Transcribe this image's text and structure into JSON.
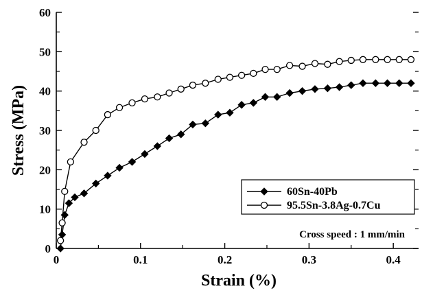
{
  "chart_data": {
    "type": "line",
    "title": "",
    "xlabel": "Strain (%)",
    "ylabel": "Stress (MPa)",
    "xlim": [
      0,
      0.43
    ],
    "ylim": [
      0,
      60
    ],
    "x_ticks": [
      "0",
      "0.1",
      "0.2",
      "0.3",
      "0.4"
    ],
    "x_tick_values": [
      0,
      0.1,
      0.2,
      0.3,
      0.4
    ],
    "y_ticks": [
      "0",
      "10",
      "20",
      "30",
      "40",
      "50",
      "60"
    ],
    "y_tick_values": [
      0,
      10,
      20,
      30,
      40,
      50,
      60
    ],
    "grid": false,
    "legend_position": "bottom-right",
    "annotation": "Cross speed : 1 mm/min",
    "series": [
      {
        "name": "60Sn-40Pb",
        "marker": "filled-diamond",
        "color": "#000000",
        "x": [
          0.005,
          0.007,
          0.01,
          0.015,
          0.022,
          0.033,
          0.047,
          0.061,
          0.075,
          0.09,
          0.105,
          0.12,
          0.134,
          0.148,
          0.162,
          0.177,
          0.192,
          0.206,
          0.22,
          0.234,
          0.248,
          0.262,
          0.277,
          0.292,
          0.307,
          0.322,
          0.336,
          0.35,
          0.364,
          0.379,
          0.393,
          0.407,
          0.421
        ],
        "y": [
          0,
          3.5,
          8.5,
          11.5,
          13,
          14,
          16.5,
          18.5,
          20.5,
          22,
          24,
          26,
          28,
          29,
          31.5,
          31.8,
          34,
          34.5,
          36.5,
          37,
          38.5,
          38.5,
          39.5,
          40,
          40.5,
          40.7,
          41,
          41.5,
          42,
          42,
          42,
          42,
          42
        ]
      },
      {
        "name": "95.5Sn-3.8Ag-0.7Cu",
        "marker": "open-circle",
        "color": "#000000",
        "x": [
          0.005,
          0.007,
          0.01,
          0.017,
          0.033,
          0.047,
          0.061,
          0.075,
          0.09,
          0.105,
          0.12,
          0.134,
          0.148,
          0.162,
          0.177,
          0.192,
          0.206,
          0.22,
          0.234,
          0.248,
          0.262,
          0.277,
          0.292,
          0.307,
          0.322,
          0.336,
          0.35,
          0.364,
          0.379,
          0.393,
          0.407,
          0.421
        ],
        "y": [
          2,
          6.5,
          14.5,
          22,
          27,
          30,
          34,
          35.8,
          37,
          38,
          38.5,
          39.5,
          40.5,
          41.5,
          42,
          43,
          43.5,
          44,
          44.5,
          45.5,
          45.5,
          46.5,
          46.3,
          47,
          46.8,
          47.5,
          47.8,
          48,
          48,
          48,
          48,
          48
        ]
      }
    ]
  }
}
